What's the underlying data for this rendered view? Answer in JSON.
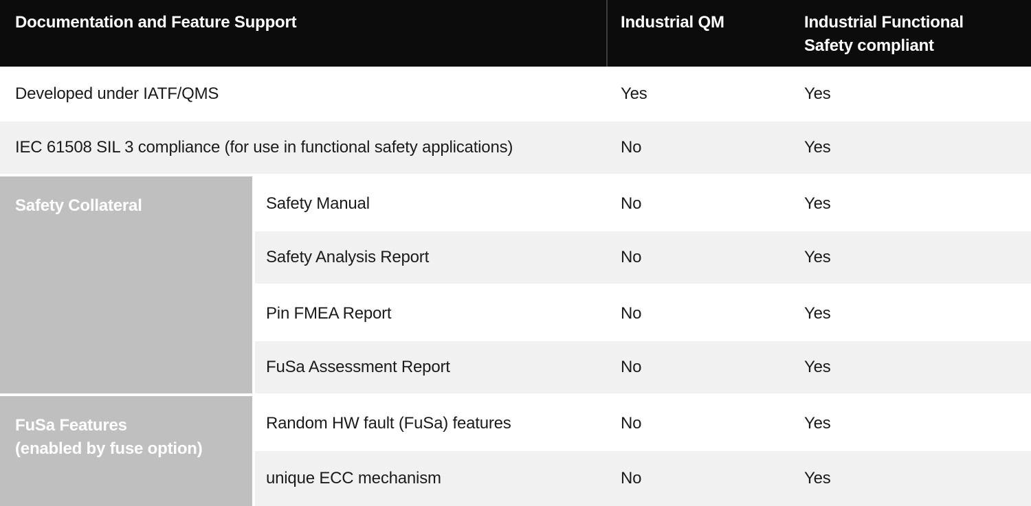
{
  "table": {
    "header": {
      "col1": "Documentation and Feature Support",
      "col2": "Industrial QM",
      "col3": "Industrial Functional Safety compliant"
    },
    "rows": [
      {
        "feature": "Developed under IATF/QMS",
        "industrial_qm": "Yes",
        "industrial_fusa": "Yes"
      },
      {
        "feature": "IEC 61508 SIL 3 compliance (for use in functional safety applications)",
        "industrial_qm": "No",
        "industrial_fusa": "Yes"
      },
      {
        "feature": "Safety Manual",
        "industrial_qm": "No",
        "industrial_fusa": "Yes"
      },
      {
        "feature": "Safety Analysis Report",
        "industrial_qm": "No",
        "industrial_fusa": "Yes"
      },
      {
        "feature": "Pin FMEA Report",
        "industrial_qm": "No",
        "industrial_fusa": "Yes"
      },
      {
        "feature": "FuSa Assessment Report",
        "industrial_qm": "No",
        "industrial_fusa": "Yes"
      },
      {
        "feature": "Random HW fault (FuSa) features",
        "industrial_qm": "No",
        "industrial_fusa": "Yes"
      },
      {
        "feature": "unique ECC mechanism",
        "industrial_qm": "No",
        "industrial_fusa": "Yes"
      }
    ],
    "sections": [
      {
        "label": "Safety Collateral",
        "covers_rows": "Safety Manual through FuSa Assessment Report"
      },
      {
        "line1": "FuSa Features",
        "line2": "(enabled by fuse option)",
        "covers_rows": "Random HW fault (FuSa) features through unique ECC mechanism"
      }
    ]
  },
  "colors": {
    "header_bg": "#0c0c0c",
    "header_text": "#ffffff",
    "header_divider": "#3c3c3c",
    "zebra_row_bg": "#f1f1f1",
    "white_row_bg": "#ffffff",
    "section_cell_bg": "#bfbfbf",
    "section_text": "#ffffff",
    "body_text": "#1b1b1b"
  }
}
